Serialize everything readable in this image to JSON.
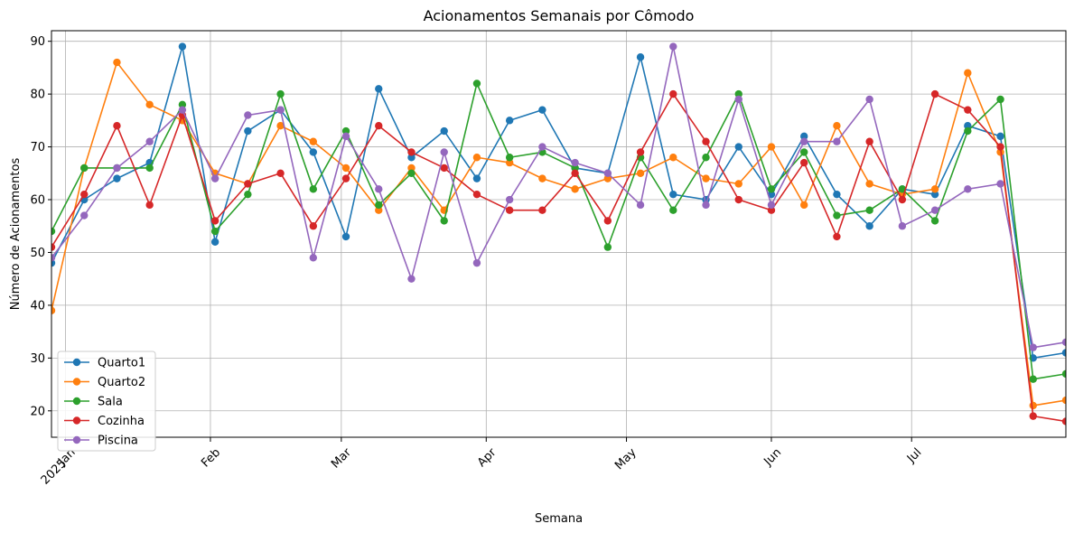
{
  "chart_data": {
    "type": "line",
    "title": "Acionamentos Semanais por Cômodo",
    "xlabel": "Semana",
    "ylabel": "Número de Acionamentos",
    "ylim": [
      15,
      92
    ],
    "yticks": [
      20,
      30,
      40,
      50,
      60,
      70,
      80,
      90
    ],
    "grid": true,
    "legend_position": "lower-left",
    "x": [
      "2024-12-29",
      "2025-01-05",
      "2025-01-12",
      "2025-01-19",
      "2025-01-26",
      "2025-02-02",
      "2025-02-09",
      "2025-02-16",
      "2025-02-23",
      "2025-03-02",
      "2025-03-09",
      "2025-03-16",
      "2025-03-23",
      "2025-03-30",
      "2025-04-06",
      "2025-04-13",
      "2025-04-20",
      "2025-04-27",
      "2025-05-04",
      "2025-05-11",
      "2025-05-18",
      "2025-05-25",
      "2025-06-01",
      "2025-06-08",
      "2025-06-15",
      "2025-06-22",
      "2025-06-29",
      "2025-07-06",
      "2025-07-13",
      "2025-07-20",
      "2025-07-27",
      "2025-08-03"
    ],
    "xlim": [
      "2024-12-29",
      "2025-08-03"
    ],
    "x_ticks": [
      {
        "date": "2025-01-01",
        "label": "Jan",
        "sublabel": "2025"
      },
      {
        "date": "2025-02-01",
        "label": "Feb"
      },
      {
        "date": "2025-03-01",
        "label": "Mar"
      },
      {
        "date": "2025-04-01",
        "label": "Apr"
      },
      {
        "date": "2025-05-01",
        "label": "May"
      },
      {
        "date": "2025-06-01",
        "label": "Jun"
      },
      {
        "date": "2025-07-01",
        "label": "Jul"
      }
    ],
    "series": [
      {
        "name": "Quarto1",
        "color": "#1f77b4",
        "values": [
          48,
          60,
          64,
          67,
          89,
          52,
          73,
          77,
          69,
          53,
          81,
          68,
          73,
          64,
          75,
          77,
          66,
          65,
          87,
          61,
          60,
          70,
          61,
          72,
          61,
          55,
          62,
          61,
          74,
          72,
          30,
          31
        ]
      },
      {
        "name": "Quarto2",
        "color": "#ff7f0e",
        "values": [
          39,
          66,
          86,
          78,
          75,
          65,
          63,
          74,
          71,
          66,
          58,
          66,
          58,
          68,
          67,
          64,
          62,
          64,
          65,
          68,
          64,
          63,
          70,
          59,
          74,
          63,
          61,
          62,
          84,
          69,
          21,
          22
        ]
      },
      {
        "name": "Sala",
        "color": "#2ca02c",
        "values": [
          54,
          66,
          66,
          66,
          78,
          54,
          61,
          80,
          62,
          73,
          59,
          65,
          56,
          82,
          68,
          69,
          66,
          51,
          68,
          58,
          68,
          80,
          62,
          69,
          57,
          58,
          62,
          56,
          73,
          79,
          26,
          27
        ]
      },
      {
        "name": "Cozinha",
        "color": "#d62728",
        "values": [
          51,
          61,
          74,
          59,
          76,
          56,
          63,
          65,
          55,
          64,
          74,
          69,
          66,
          61,
          58,
          58,
          65,
          56,
          69,
          80,
          71,
          60,
          58,
          67,
          53,
          71,
          60,
          80,
          77,
          70,
          19,
          18
        ]
      },
      {
        "name": "Piscina",
        "color": "#9467bd",
        "values": [
          49,
          57,
          66,
          71,
          77,
          64,
          76,
          77,
          49,
          72,
          62,
          45,
          69,
          48,
          60,
          70,
          67,
          65,
          59,
          89,
          59,
          79,
          59,
          71,
          71,
          79,
          55,
          58,
          62,
          63,
          32,
          33
        ]
      }
    ]
  }
}
